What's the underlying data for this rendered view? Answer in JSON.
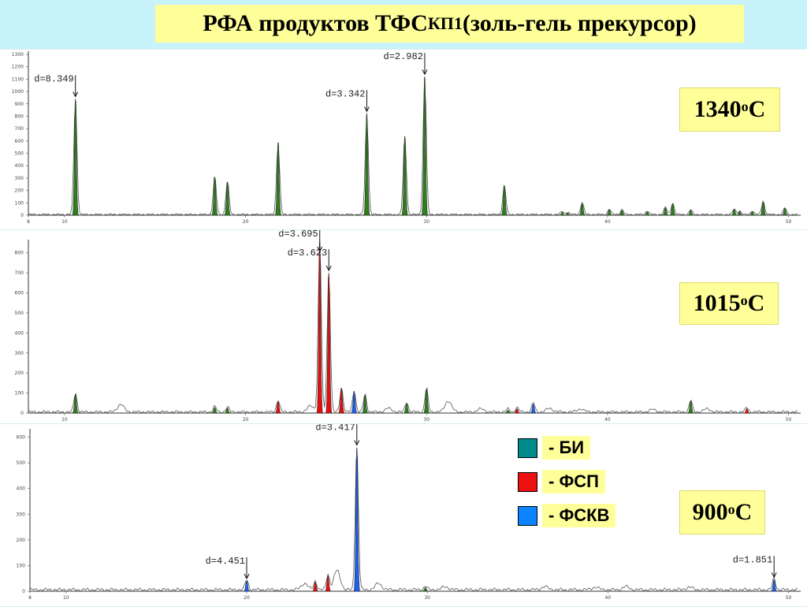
{
  "title": {
    "main": "РФА продуктов ТФС",
    "sub": "КП1",
    "tail": " (золь-гель прекурсор)"
  },
  "colors": {
    "БИ": "#2e7d1e",
    "ФСП": "#e01010",
    "ФСКВ": "#1e5ee8",
    "baseline": "#555555"
  },
  "legend": [
    {
      "label": "- БИ",
      "color": "#008b8b"
    },
    {
      "label": "- ФСП",
      "color": "#ee1111"
    },
    {
      "label": "- ФСКВ",
      "color": "#0a84ff"
    }
  ],
  "chart_data": [
    {
      "type": "line",
      "temperature": {
        "value": "1340",
        "unit": "C"
      },
      "x_ticks": [
        "8",
        "10",
        "20",
        "30",
        "40",
        "50"
      ],
      "y_ticks": [
        "0",
        "100",
        "200",
        "300",
        "400",
        "500",
        "600",
        "700",
        "800",
        "900",
        "1000",
        "1100",
        "1200",
        "1300"
      ],
      "xlim": [
        8,
        50.5
      ],
      "ylim": [
        0,
        1300
      ],
      "annotations": [
        {
          "text": "d=8.349",
          "x": 10.6,
          "y": 940
        },
        {
          "text": "d=3.342",
          "x": 26.7,
          "y": 820
        },
        {
          "text": "d=2.982",
          "x": 29.9,
          "y": 1120
        }
      ],
      "peaks": [
        {
          "x": 10.6,
          "y": 940,
          "phase": "БИ"
        },
        {
          "x": 18.3,
          "y": 310,
          "phase": "БИ"
        },
        {
          "x": 19.0,
          "y": 270,
          "phase": "БИ"
        },
        {
          "x": 21.8,
          "y": 590,
          "phase": "БИ"
        },
        {
          "x": 26.7,
          "y": 820,
          "phase": "БИ"
        },
        {
          "x": 28.8,
          "y": 640,
          "phase": "БИ"
        },
        {
          "x": 29.9,
          "y": 1120,
          "phase": "БИ"
        },
        {
          "x": 34.3,
          "y": 240,
          "phase": "БИ"
        },
        {
          "x": 37.5,
          "y": 25,
          "phase": "БИ"
        },
        {
          "x": 37.8,
          "y": 20,
          "phase": "БИ"
        },
        {
          "x": 38.6,
          "y": 100,
          "phase": "БИ"
        },
        {
          "x": 40.1,
          "y": 45,
          "phase": "БИ"
        },
        {
          "x": 40.8,
          "y": 40,
          "phase": "БИ"
        },
        {
          "x": 42.2,
          "y": 30,
          "phase": "БИ"
        },
        {
          "x": 43.2,
          "y": 60,
          "phase": "БИ"
        },
        {
          "x": 43.6,
          "y": 95,
          "phase": "БИ"
        },
        {
          "x": 44.6,
          "y": 40,
          "phase": "БИ"
        },
        {
          "x": 47.0,
          "y": 45,
          "phase": "БИ"
        },
        {
          "x": 47.3,
          "y": 30,
          "phase": "БИ"
        },
        {
          "x": 48.0,
          "y": 30,
          "phase": "БИ"
        },
        {
          "x": 48.6,
          "y": 110,
          "phase": "БИ"
        },
        {
          "x": 49.8,
          "y": 55,
          "phase": "БИ"
        }
      ],
      "bumps": []
    },
    {
      "type": "line",
      "temperature": {
        "value": "1015",
        "unit": "C"
      },
      "x_ticks": [
        "10",
        "20",
        "30",
        "40",
        "50"
      ],
      "y_ticks": [
        "0",
        "100",
        "200",
        "300",
        "400",
        "500",
        "600",
        "700",
        "800"
      ],
      "xlim": [
        8,
        50.5
      ],
      "ylim": [
        0,
        850
      ],
      "annotations": [
        {
          "text": "d=3.695",
          "x": 24.1,
          "y": 860
        },
        {
          "text": "d=3.623",
          "x": 24.6,
          "y": 700
        }
      ],
      "peaks": [
        {
          "x": 10.6,
          "y": 95,
          "phase": "БИ"
        },
        {
          "x": 18.3,
          "y": 28,
          "phase": "БИ"
        },
        {
          "x": 19.0,
          "y": 25,
          "phase": "БИ"
        },
        {
          "x": 21.8,
          "y": 60,
          "phase": "ФСП"
        },
        {
          "x": 24.1,
          "y": 860,
          "phase": "ФСП"
        },
        {
          "x": 24.6,
          "y": 700,
          "phase": "ФСП"
        },
        {
          "x": 25.3,
          "y": 125,
          "phase": "ФСП"
        },
        {
          "x": 26.0,
          "y": 110,
          "phase": "ФСКВ"
        },
        {
          "x": 26.6,
          "y": 90,
          "phase": "БИ"
        },
        {
          "x": 28.9,
          "y": 50,
          "phase": "БИ"
        },
        {
          "x": 30.0,
          "y": 120,
          "phase": "БИ"
        },
        {
          "x": 34.5,
          "y": 15,
          "phase": "БИ"
        },
        {
          "x": 35.0,
          "y": 22,
          "phase": "ФСП"
        },
        {
          "x": 35.9,
          "y": 45,
          "phase": "ФСКВ"
        },
        {
          "x": 44.6,
          "y": 60,
          "phase": "БИ"
        },
        {
          "x": 47.7,
          "y": 22,
          "phase": "ФСП"
        }
      ],
      "bumps": [
        {
          "x": 13.1,
          "y": 38
        },
        {
          "x": 23.6,
          "y": 30
        },
        {
          "x": 27.9,
          "y": 18
        },
        {
          "x": 31.2,
          "y": 55
        },
        {
          "x": 33.0,
          "y": 15
        },
        {
          "x": 36.8,
          "y": 18
        },
        {
          "x": 38.5,
          "y": 15
        },
        {
          "x": 42.5,
          "y": 12
        },
        {
          "x": 45.5,
          "y": 15
        }
      ]
    },
    {
      "type": "line",
      "temperature": {
        "value": "900",
        "unit": "C"
      },
      "x_ticks": [
        "8",
        "10",
        "20",
        "30",
        "40",
        "50"
      ],
      "y_ticks": [
        "0",
        "100",
        "200",
        "300",
        "400",
        "500",
        "600"
      ],
      "xlim": [
        8,
        50.5
      ],
      "ylim": [
        0,
        620
      ],
      "annotations": [
        {
          "text": "d=4.451",
          "x": 20.0,
          "y": 40
        },
        {
          "text": "d=3.417",
          "x": 26.1,
          "y": 560
        },
        {
          "text": "d=1.851",
          "x": 49.2,
          "y": 45
        }
      ],
      "peaks": [
        {
          "x": 20.0,
          "y": 40,
          "phase": "ФСКВ"
        },
        {
          "x": 23.8,
          "y": 35,
          "phase": "ФСП"
        },
        {
          "x": 24.5,
          "y": 60,
          "phase": "ФСП"
        },
        {
          "x": 26.1,
          "y": 560,
          "phase": "ФСКВ"
        },
        {
          "x": 29.9,
          "y": 15,
          "phase": "БИ"
        },
        {
          "x": 49.2,
          "y": 45,
          "phase": "ФСКВ"
        }
      ],
      "bumps": [
        {
          "x": 23.2,
          "y": 25
        },
        {
          "x": 25.0,
          "y": 75
        },
        {
          "x": 27.3,
          "y": 25
        },
        {
          "x": 31.0,
          "y": 12
        },
        {
          "x": 36.5,
          "y": 12
        },
        {
          "x": 39.3,
          "y": 10
        },
        {
          "x": 41.0,
          "y": 12
        },
        {
          "x": 44.5,
          "y": 10
        }
      ]
    }
  ]
}
